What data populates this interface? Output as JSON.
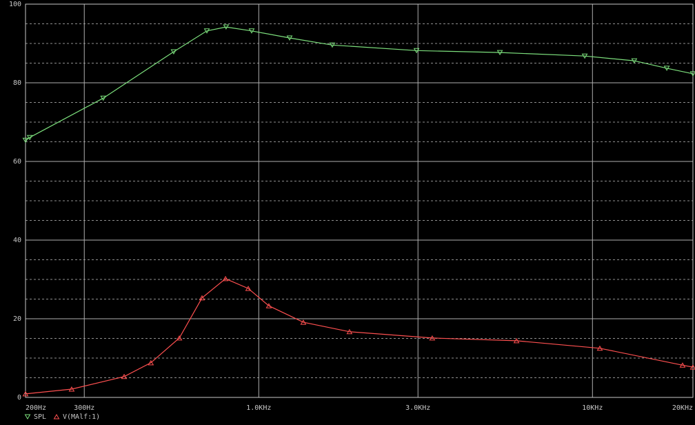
{
  "chart_data": {
    "type": "line",
    "x_scale": "log",
    "xlim": [
      200,
      20000
    ],
    "xticks": [
      {
        "value": 200,
        "label": "200Hz"
      },
      {
        "value": 300,
        "label": "300Hz"
      },
      {
        "value": 1000,
        "label": "1.0KHz"
      },
      {
        "value": 3000,
        "label": "3.0KHz"
      },
      {
        "value": 10000,
        "label": "10KHz"
      },
      {
        "value": 20000,
        "label": "20KHz"
      }
    ],
    "ylim": [
      0,
      100
    ],
    "yticks": [
      0,
      20,
      40,
      60,
      80,
      100
    ],
    "minor_yticks": [
      5,
      10,
      15,
      25,
      30,
      35,
      45,
      50,
      55,
      65,
      70,
      75,
      85,
      90,
      95
    ],
    "grid": true,
    "legend": "bottom-left",
    "series": [
      {
        "name": "SPL",
        "color": "#7de07d",
        "marker": "triangle-down",
        "x": [
          200,
          206,
          342,
          556,
          699,
          798,
          952,
          1237,
          1661,
          2970,
          5280,
          9480,
          13340,
          16700,
          20000
        ],
        "values": [
          65.4,
          66.1,
          76.1,
          87.9,
          93.2,
          94.2,
          93.2,
          91.4,
          89.6,
          88.2,
          87.7,
          86.8,
          85.6,
          83.7,
          82.3
        ]
      },
      {
        "name": "V(MAlf:1)",
        "color": "#ff5050",
        "marker": "triangle-up",
        "x": [
          200,
          275,
          395,
          475,
          578,
          676,
          795,
          930,
          1072,
          1360,
          1870,
          3310,
          5920,
          10520,
          18620,
          20000
        ],
        "values": [
          0.9,
          2.1,
          5.3,
          8.8,
          15.1,
          25.3,
          30.2,
          27.7,
          23.3,
          19.1,
          16.7,
          15.1,
          14.4,
          12.5,
          8.2,
          7.7
        ]
      }
    ]
  }
}
